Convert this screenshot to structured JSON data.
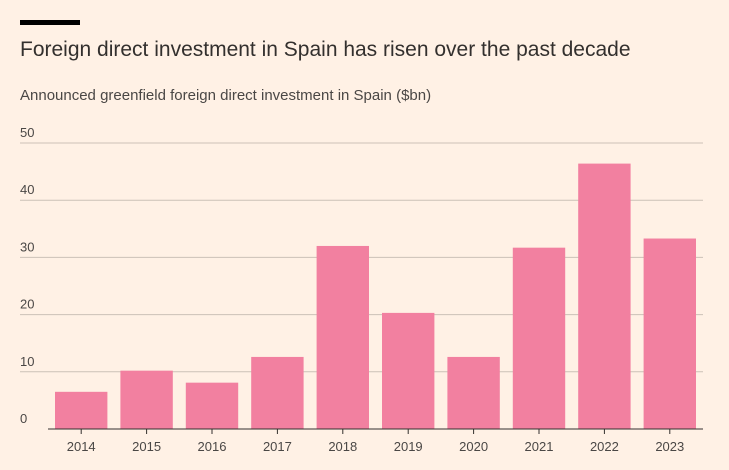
{
  "header": {
    "title": "Foreign direct investment in Spain has risen over the past decade",
    "subtitle": "Announced greenfield foreign direct investment in Spain ($bn)"
  },
  "colors": {
    "background": "#fff1e5",
    "bar": "#f280a0",
    "gridline": "#ccc1b7",
    "baseline": "#33302e"
  },
  "chart_data": {
    "type": "bar",
    "title": "Foreign direct investment in Spain has risen over the past decade",
    "subtitle": "Announced greenfield foreign direct investment in Spain ($bn)",
    "categories": [
      "2014",
      "2015",
      "2016",
      "2017",
      "2018",
      "2019",
      "2020",
      "2021",
      "2022",
      "2023"
    ],
    "values": [
      6.5,
      10.2,
      8.1,
      12.6,
      32.0,
      20.3,
      12.6,
      31.7,
      46.4,
      33.3
    ],
    "ylim": [
      0,
      50
    ],
    "yticks": [
      0,
      10,
      20,
      30,
      40,
      50
    ],
    "grid": true,
    "legend": "none"
  }
}
